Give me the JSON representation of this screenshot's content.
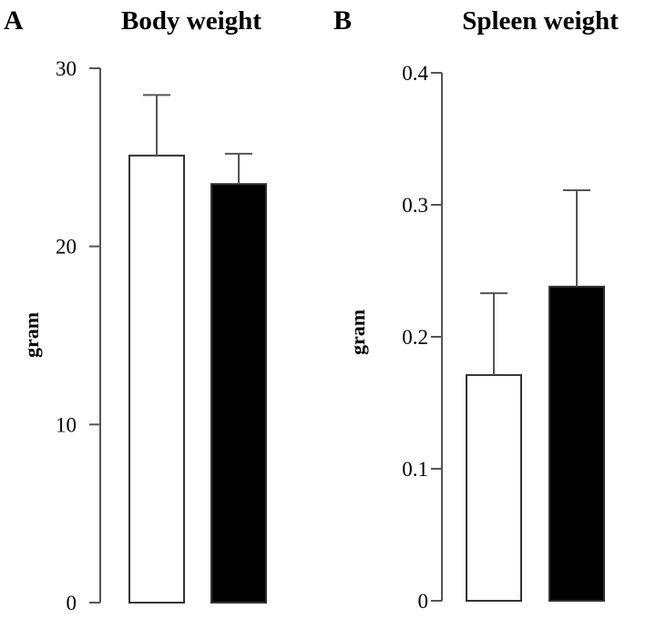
{
  "chart_data": [
    {
      "panel": "A",
      "type": "bar",
      "title": "Body weight",
      "ylabel": "gram",
      "xlabel": "",
      "ylim": [
        0,
        30
      ],
      "yticks": [
        "0",
        "10",
        "20",
        "30"
      ],
      "grid": false,
      "legend": "none",
      "categories": [
        "",
        ""
      ],
      "values": [
        25.1,
        23.5
      ],
      "errors": [
        3.4,
        1.7
      ],
      "colors": [
        "#ffffff",
        "#000000"
      ]
    },
    {
      "panel": "B",
      "type": "bar",
      "title": "Spleen weight",
      "ylabel": "gram",
      "xlabel": "",
      "ylim": [
        0,
        0.4
      ],
      "yticks": [
        "0",
        "0.1",
        "0.2",
        "0.3",
        "0.4"
      ],
      "grid": false,
      "legend": "none",
      "categories": [
        "",
        ""
      ],
      "values": [
        0.171,
        0.238
      ],
      "errors": [
        0.062,
        0.073
      ],
      "colors": [
        "#ffffff",
        "#000000"
      ]
    }
  ]
}
